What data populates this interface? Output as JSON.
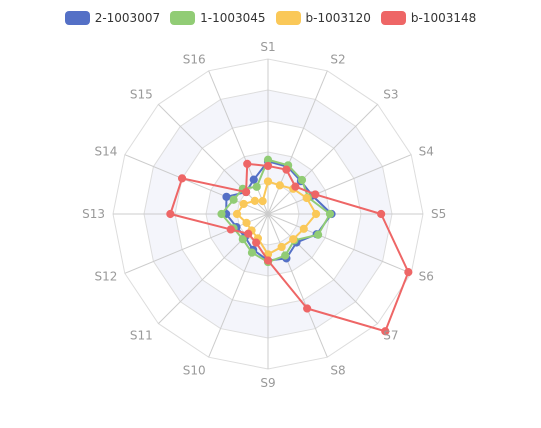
{
  "chart_data": {
    "type": "radar",
    "indicators": [
      "S1",
      "S16",
      "S15",
      "S14",
      "S13",
      "S12",
      "S11",
      "S10",
      "S9",
      "S8",
      "S7",
      "S6",
      "S5",
      "S4",
      "S3",
      "S2"
    ],
    "max": 100,
    "split_number": 5,
    "legend_position": "top",
    "series": [
      {
        "name": "2-1003007",
        "color": "#5470c6",
        "values": [
          34,
          24,
          20,
          29,
          27,
          22,
          21,
          25,
          30,
          31,
          26,
          34,
          41,
          31,
          30,
          33
        ]
      },
      {
        "name": "1-1003045",
        "color": "#91cc75",
        "values": [
          35,
          19,
          23,
          24,
          30,
          24,
          23,
          27,
          31,
          29,
          24,
          35,
          40,
          28,
          31,
          34
        ]
      },
      {
        "name": "b-1003120",
        "color": "#fac858",
        "values": [
          21,
          9,
          12,
          17,
          20,
          15,
          15,
          17,
          26,
          23,
          23,
          25,
          31,
          27,
          23,
          20
        ]
      },
      {
        "name": "b-1003148",
        "color": "#ee6666",
        "values": [
          31,
          35,
          20,
          60,
          63,
          26,
          18,
          20,
          30,
          66,
          107,
          98,
          73,
          33,
          25,
          31
        ]
      }
    ]
  }
}
